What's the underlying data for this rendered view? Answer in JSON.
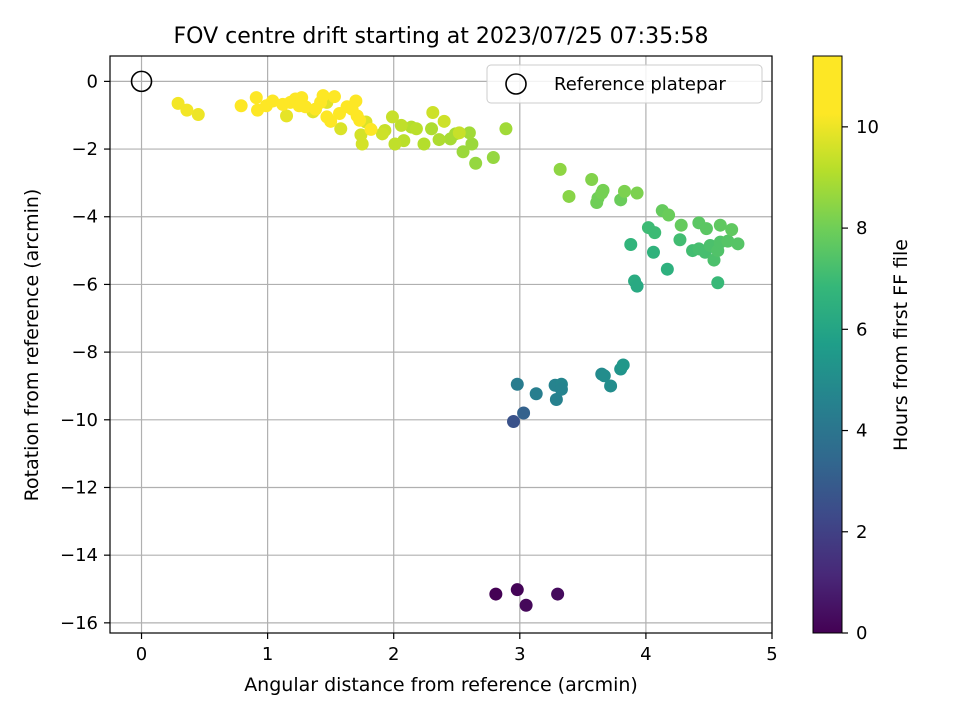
{
  "chart_data": {
    "type": "scatter",
    "title": "FOV centre drift starting at 2023/07/25 07:35:58",
    "xlabel": "Angular distance from reference (arcmin)",
    "ylabel": "Rotation from reference (arcmin)",
    "xlim": [
      -0.25,
      5.0
    ],
    "ylim": [
      -16.3,
      0.75
    ],
    "x_ticks": [
      0,
      1,
      2,
      3,
      4,
      5
    ],
    "y_ticks": [
      0,
      -2,
      -4,
      -6,
      -8,
      -10,
      -12,
      -14,
      -16
    ],
    "x_tick_labels": [
      "0",
      "1",
      "2",
      "3",
      "4",
      "5"
    ],
    "y_tick_labels": [
      "0",
      "−2",
      "−4",
      "−6",
      "−8",
      "−10",
      "−12",
      "−14",
      "−16"
    ],
    "grid": true,
    "legend": {
      "placement": "top-right",
      "entries": [
        "Reference platepar"
      ]
    },
    "reference_point": {
      "x": 0,
      "y": 0,
      "label": "Reference platepar"
    },
    "colorbar": {
      "label": "Hours from first FF file",
      "colormap": "viridis",
      "range": [
        0,
        11.4
      ],
      "ticks": [
        0,
        2,
        4,
        6,
        8,
        10
      ],
      "tick_labels": [
        "0",
        "2",
        "4",
        "6",
        "8",
        "10"
      ]
    },
    "series": [
      {
        "points": [
          [
            2.81,
            -15.15,
            0.0
          ],
          [
            2.98,
            -15.02,
            0.1
          ],
          [
            3.05,
            -15.48,
            0.2
          ],
          [
            3.3,
            -15.15,
            0.3
          ],
          [
            2.95,
            -10.05,
            2.6
          ],
          [
            3.03,
            -9.8,
            3.2
          ],
          [
            2.98,
            -8.95,
            4.3
          ],
          [
            3.13,
            -9.23,
            4.4
          ],
          [
            3.28,
            -8.98,
            4.6
          ],
          [
            3.29,
            -9.4,
            4.5
          ],
          [
            3.33,
            -8.95,
            4.7
          ],
          [
            3.33,
            -9.1,
            4.6
          ],
          [
            3.65,
            -8.65,
            4.9
          ],
          [
            3.67,
            -8.7,
            5.0
          ],
          [
            3.72,
            -9.0,
            5.0
          ],
          [
            3.8,
            -8.5,
            5.3
          ],
          [
            3.82,
            -8.38,
            5.4
          ],
          [
            3.91,
            -5.9,
            6.3
          ],
          [
            3.93,
            -6.05,
            6.2
          ],
          [
            4.17,
            -5.55,
            6.5
          ],
          [
            4.06,
            -5.05,
            6.6
          ],
          [
            3.88,
            -4.82,
            6.7
          ],
          [
            4.57,
            -5.95,
            6.9
          ],
          [
            4.02,
            -4.32,
            7.0
          ],
          [
            4.07,
            -4.47,
            7.0
          ],
          [
            4.27,
            -4.68,
            7.1
          ],
          [
            4.37,
            -5.0,
            7.1
          ],
          [
            4.42,
            -4.95,
            7.2
          ],
          [
            4.47,
            -5.05,
            7.2
          ],
          [
            4.51,
            -4.85,
            7.3
          ],
          [
            4.54,
            -5.28,
            7.3
          ],
          [
            4.57,
            -5.0,
            7.4
          ],
          [
            4.59,
            -4.75,
            7.4
          ],
          [
            4.65,
            -4.72,
            7.5
          ],
          [
            4.73,
            -4.8,
            7.5
          ],
          [
            4.42,
            -4.18,
            7.6
          ],
          [
            4.48,
            -4.35,
            7.6
          ],
          [
            4.59,
            -4.25,
            7.7
          ],
          [
            4.68,
            -4.38,
            7.7
          ],
          [
            4.28,
            -4.25,
            7.8
          ],
          [
            4.13,
            -3.82,
            7.8
          ],
          [
            4.18,
            -3.95,
            7.9
          ],
          [
            3.8,
            -3.5,
            7.9
          ],
          [
            3.61,
            -3.58,
            8.0
          ],
          [
            3.62,
            -3.45,
            8.0
          ],
          [
            3.66,
            -3.22,
            8.1
          ],
          [
            3.65,
            -3.3,
            8.1
          ],
          [
            3.83,
            -3.25,
            8.2
          ],
          [
            3.93,
            -3.3,
            8.2
          ],
          [
            3.57,
            -2.9,
            8.3
          ],
          [
            3.32,
            -2.6,
            8.5
          ],
          [
            3.39,
            -3.4,
            8.4
          ],
          [
            2.65,
            -2.42,
            8.6
          ],
          [
            2.79,
            -2.25,
            8.6
          ],
          [
            2.55,
            -2.08,
            8.7
          ],
          [
            2.62,
            -1.85,
            8.7
          ],
          [
            2.89,
            -1.4,
            8.8
          ],
          [
            2.6,
            -1.52,
            8.8
          ],
          [
            2.49,
            -1.55,
            8.9
          ],
          [
            2.45,
            -1.7,
            8.9
          ],
          [
            2.3,
            -1.4,
            9.0
          ],
          [
            2.36,
            -1.72,
            9.0
          ],
          [
            2.24,
            -1.85,
            9.1
          ],
          [
            2.14,
            -1.35,
            9.1
          ],
          [
            2.18,
            -1.4,
            9.2
          ],
          [
            2.08,
            -1.75,
            9.2
          ],
          [
            2.01,
            -1.85,
            9.3
          ],
          [
            2.06,
            -1.3,
            9.3
          ],
          [
            1.99,
            -1.05,
            9.4
          ],
          [
            1.93,
            -1.45,
            9.4
          ],
          [
            1.91,
            -1.55,
            9.5
          ],
          [
            2.31,
            -0.92,
            9.5
          ],
          [
            2.4,
            -1.18,
            9.5
          ],
          [
            2.52,
            -1.52,
            9.4
          ],
          [
            1.74,
            -1.58,
            9.6
          ],
          [
            1.75,
            -1.85,
            9.6
          ],
          [
            1.58,
            -1.4,
            9.7
          ],
          [
            1.78,
            -1.2,
            9.7
          ],
          [
            1.36,
            -0.9,
            9.8
          ],
          [
            1.47,
            -0.62,
            9.8
          ],
          [
            1.15,
            -1.02,
            9.9
          ],
          [
            0.45,
            -0.98,
            10.0
          ],
          [
            0.36,
            -0.85,
            10.1
          ],
          [
            0.29,
            -0.65,
            10.1
          ],
          [
            0.92,
            -0.85,
            10.3
          ],
          [
            0.99,
            -0.72,
            10.4
          ],
          [
            1.04,
            -0.58,
            10.5
          ],
          [
            1.12,
            -0.68,
            10.6
          ],
          [
            0.79,
            -0.72,
            10.7
          ],
          [
            0.91,
            -0.48,
            10.8
          ],
          [
            1.18,
            -0.62,
            10.9
          ],
          [
            1.22,
            -0.52,
            11.0
          ],
          [
            1.27,
            -0.48,
            11.1
          ],
          [
            1.3,
            -0.75,
            11.1
          ],
          [
            1.38,
            -0.82,
            11.2
          ],
          [
            1.42,
            -0.62,
            11.2
          ],
          [
            1.44,
            -0.42,
            11.2
          ],
          [
            1.53,
            -0.45,
            11.3
          ],
          [
            1.57,
            -0.95,
            11.3
          ],
          [
            1.63,
            -0.75,
            11.3
          ],
          [
            1.67,
            -0.82,
            11.3
          ],
          [
            1.7,
            -0.58,
            11.4
          ],
          [
            1.71,
            -1.02,
            11.4
          ],
          [
            1.73,
            -1.15,
            11.4
          ],
          [
            1.47,
            -1.05,
            11.4
          ],
          [
            1.5,
            -1.18,
            11.4
          ],
          [
            1.82,
            -1.42,
            11.4
          ],
          [
            1.25,
            -0.72,
            11.4
          ]
        ]
      }
    ]
  }
}
